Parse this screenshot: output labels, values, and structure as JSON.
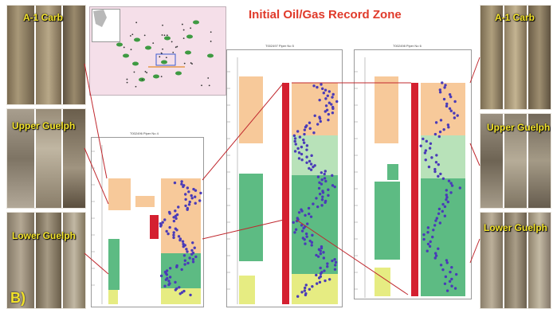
{
  "title": "Initial Oil/Gas Record Zone",
  "panel_label": "B)",
  "core_photos_left": [
    {
      "label": "A-1 Carb"
    },
    {
      "label": "Upper Guelph"
    },
    {
      "label": "Lower Guelph"
    }
  ],
  "core_photos_right": [
    {
      "label": "A-1 Carb"
    },
    {
      "label": "Upper Guelph"
    },
    {
      "label": "Lower Guelph"
    }
  ],
  "well_logs": [
    {
      "title": "T002496  Piper No 4"
    },
    {
      "title": "T002497  Piper No 5"
    },
    {
      "title": "T002498  Piper No 6"
    }
  ],
  "colors": {
    "title_red": "#e03a2a",
    "oil_gas_zone": "#d42030",
    "a1_carb": "#f7c99a",
    "upper_guelph": "#b8e2b9",
    "lower_guelph": "#5dbb83",
    "basal": "#e6ec82",
    "data_points": "#4a3bb8",
    "photo_label": "#f2e22a",
    "map_bg": "#f5dfe9"
  }
}
